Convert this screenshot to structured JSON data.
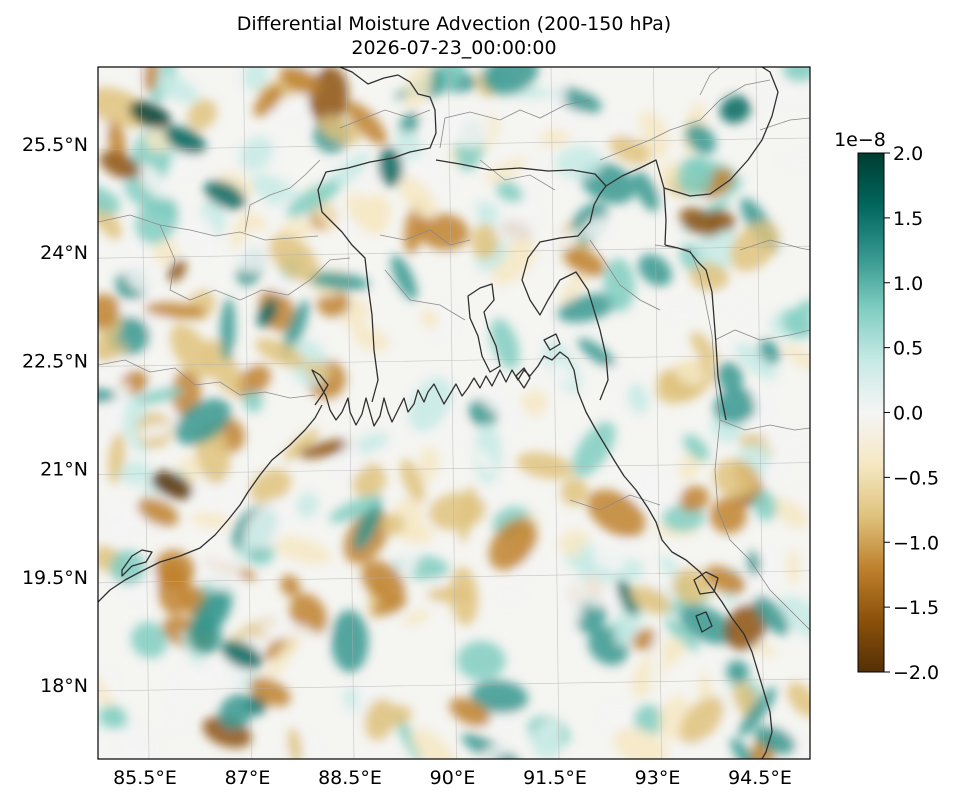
{
  "title": "Differential Moisture Advection (200-150 hPa)",
  "subtitle": "2026-07-23_00:00:00",
  "map": {
    "lon_range": [
      84.5,
      94.5
    ],
    "lat_range": [
      16.8,
      26.5
    ],
    "lon_ticks": [
      "85.5°E",
      "87°E",
      "88.5°E",
      "90°E",
      "91.5°E",
      "93°E",
      "94.5°E"
    ],
    "lat_ticks": [
      "25.5°N",
      "24°N",
      "22.5°N",
      "21°N",
      "19.5°N",
      "18°N"
    ],
    "gridlines": true
  },
  "colorbar": {
    "multiplier": "1e−8",
    "min": -2.0,
    "max": 2.0,
    "ticks": [
      "2.0",
      "1.5",
      "1.0",
      "0.5",
      "0.0",
      "−0.5",
      "−1.0",
      "−1.5",
      "−2.0"
    ],
    "colors": [
      "#543005",
      "#8c510a",
      "#bf812d",
      "#dfc27d",
      "#f6e8c3",
      "#f5f5f5",
      "#c7eae5",
      "#80cdc1",
      "#35978f",
      "#01665e",
      "#003c30"
    ]
  }
}
